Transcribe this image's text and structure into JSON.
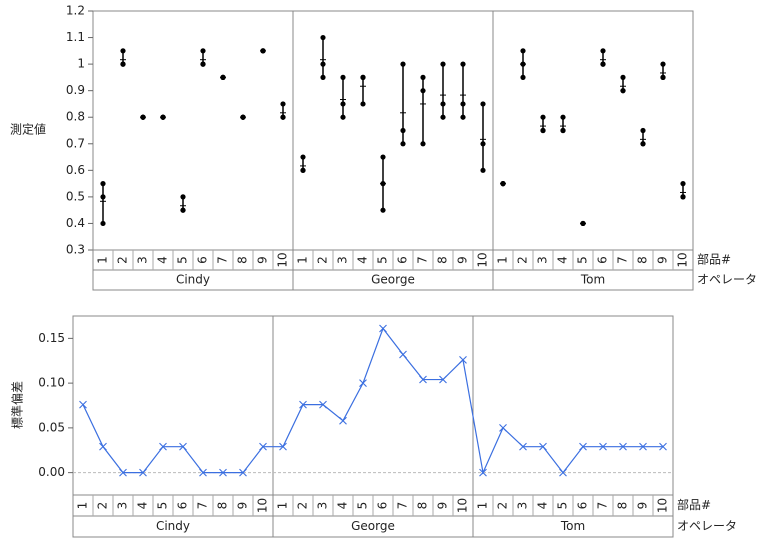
{
  "chart_data": [
    {
      "type": "variability",
      "y_label": "測定値",
      "x_labels": [
        "部品#",
        "オペレータ"
      ],
      "color": "#000000",
      "ylim": [
        0.3,
        1.2
      ],
      "yticks": [
        0.3,
        0.4,
        0.5,
        0.6,
        0.7,
        0.8,
        0.9,
        1,
        1.1,
        1.2
      ],
      "groups": [
        {
          "name": "Cindy",
          "parts": [
            "1",
            "2",
            "3",
            "4",
            "5",
            "6",
            "7",
            "8",
            "9",
            "10"
          ],
          "values": [
            [
              0.55,
              0.5,
              0.4
            ],
            [
              1.05,
              1.0,
              1.0
            ],
            [
              0.8,
              0.8,
              0.8
            ],
            [
              0.8,
              0.8,
              0.8
            ],
            [
              0.5,
              0.45,
              0.45
            ],
            [
              1.05,
              1.0,
              1.0
            ],
            [
              0.95,
              0.95,
              0.95
            ],
            [
              0.8,
              0.8,
              0.8
            ],
            [
              1.05,
              1.05,
              1.05
            ],
            [
              0.85,
              0.8,
              0.8
            ]
          ]
        },
        {
          "name": "George",
          "parts": [
            "1",
            "2",
            "3",
            "4",
            "5",
            "6",
            "7",
            "8",
            "9",
            "10"
          ],
          "values": [
            [
              0.65,
              0.6,
              0.6
            ],
            [
              1.1,
              1.0,
              0.95
            ],
            [
              0.95,
              0.85,
              0.8
            ],
            [
              0.95,
              0.95,
              0.85
            ],
            [
              0.65,
              0.55,
              0.45
            ],
            [
              1.0,
              0.75,
              0.7
            ],
            [
              0.95,
              0.9,
              0.7
            ],
            [
              1.0,
              0.85,
              0.8
            ],
            [
              1.0,
              0.85,
              0.8
            ],
            [
              0.85,
              0.7,
              0.6
            ]
          ]
        },
        {
          "name": "Tom",
          "parts": [
            "1",
            "2",
            "3",
            "4",
            "5",
            "6",
            "7",
            "8",
            "9",
            "10"
          ],
          "values": [
            [
              0.55,
              0.55,
              0.55
            ],
            [
              1.05,
              1.0,
              0.95
            ],
            [
              0.8,
              0.75,
              0.75
            ],
            [
              0.8,
              0.75,
              0.75
            ],
            [
              0.4,
              0.4,
              0.4
            ],
            [
              1.05,
              1.0,
              1.0
            ],
            [
              0.95,
              0.9,
              0.9
            ],
            [
              0.75,
              0.7,
              0.7
            ],
            [
              1.0,
              0.95,
              0.95
            ],
            [
              0.55,
              0.5,
              0.5
            ]
          ]
        }
      ]
    },
    {
      "type": "line",
      "y_label": "標準偏差",
      "x_labels": [
        "部品#",
        "オペレータ"
      ],
      "color": "#3b6fe0",
      "ylim": [
        -0.025,
        0.175
      ],
      "yticks": [
        {
          "value": 0,
          "label": "0.00"
        },
        {
          "value": 0.05,
          "label": "0.05"
        },
        {
          "value": 0.1,
          "label": "0.10"
        },
        {
          "value": 0.15,
          "label": "0.15"
        }
      ],
      "groups": [
        {
          "name": "Cindy",
          "parts": [
            "1",
            "2",
            "3",
            "4",
            "5",
            "6",
            "7",
            "8",
            "9",
            "10"
          ],
          "values": [
            0.076,
            0.029,
            0,
            0,
            0.029,
            0.029,
            0,
            0,
            0,
            0.029
          ]
        },
        {
          "name": "George",
          "parts": [
            "1",
            "2",
            "3",
            "4",
            "5",
            "6",
            "7",
            "8",
            "9",
            "10"
          ],
          "values": [
            0.029,
            0.076,
            0.076,
            0.058,
            0.1,
            0.161,
            0.132,
            0.104,
            0.104,
            0.126
          ]
        },
        {
          "name": "Tom",
          "parts": [
            "1",
            "2",
            "3",
            "4",
            "5",
            "6",
            "7",
            "8",
            "9",
            "10"
          ],
          "values": [
            0,
            0.05,
            0.029,
            0.029,
            0,
            0.029,
            0.029,
            0.029,
            0.029,
            0.029
          ]
        }
      ]
    }
  ]
}
